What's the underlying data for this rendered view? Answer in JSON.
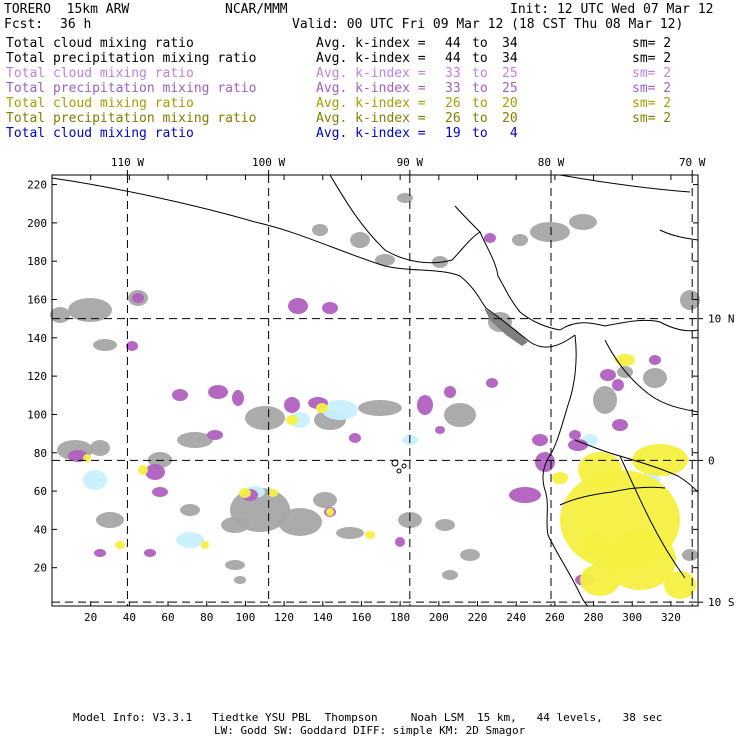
{
  "header": {
    "model": "TORERO  15km ARW",
    "org": "NCAR/MMM",
    "init": "Init: 12 UTC Wed 07 Mar 12",
    "fcst_label": "Fcst:",
    "fcst_value": "36 h",
    "valid": "Valid: 00 UTC Fri 09 Mar 12 (18 CST Thu 08 Mar 12)"
  },
  "legend": [
    {
      "field": "Total cloud mixing ratio",
      "kindex": "Avg. k-index = ",
      "from": "44",
      "to": "34",
      "sm": "sm= 2",
      "color": "#000000"
    },
    {
      "field": "Total precipitation mixing ratio",
      "kindex": "Avg. k-index = ",
      "from": "44",
      "to": "34",
      "sm": "sm= 2",
      "color": "#000000"
    },
    {
      "field": "Total cloud mixing ratio",
      "kindex": "Avg. k-index = ",
      "from": "33",
      "to": "25",
      "sm": "sm= 2",
      "color": "#c080e0"
    },
    {
      "field": "Total precipitation mixing ratio",
      "kindex": "Avg. k-index = ",
      "from": "33",
      "to": "25",
      "sm": "sm= 2",
      "color": "#a060c0"
    },
    {
      "field": "Total cloud mixing ratio",
      "kindex": "Avg. k-index = ",
      "from": "26",
      "to": "20",
      "sm": "sm= 2",
      "color": "#a0a000"
    },
    {
      "field": "Total precipitation mixing ratio",
      "kindex": "Avg. k-index = ",
      "from": "26",
      "to": "20",
      "sm": "sm= 2",
      "color": "#808000"
    },
    {
      "field": "Total cloud mixing ratio",
      "kindex": "Avg. k-index = ",
      "from": "19",
      "to": "4",
      "sm": "",
      "color": "#0000cc"
    }
  ],
  "map": {
    "x_ticks": [
      20,
      40,
      60,
      80,
      100,
      120,
      140,
      160,
      180,
      200,
      220,
      240,
      260,
      280,
      300,
      320
    ],
    "y_ticks": [
      20,
      40,
      60,
      80,
      100,
      120,
      140,
      160,
      180,
      200,
      220
    ],
    "x_range": [
      0,
      334
    ],
    "y_range": [
      0,
      225
    ],
    "lon_labels": [
      {
        "label": "110 W",
        "grid_x": 39
      },
      {
        "label": "100 W",
        "grid_x": 112
      },
      {
        "label": "90 W",
        "grid_x": 185
      },
      {
        "label": "80 W",
        "grid_x": 258
      },
      {
        "label": "70 W",
        "grid_x": 331
      }
    ],
    "lat_labels": [
      {
        "label": "10 N",
        "grid_y": 150
      },
      {
        "label": "0",
        "grid_y": 76
      },
      {
        "label": "10 S",
        "grid_y": 2
      }
    ],
    "colors": {
      "gray": "#a6a6a6",
      "purple": "#b060c0",
      "yellow": "#f4f040",
      "lightblue": "#c8f0ff",
      "coast": "#000000",
      "grid": "#000000"
    }
  },
  "footer": {
    "line1": "Model Info: V3.3.1   Tiedtke YSU PBL  Thompson     Noah LSM  15 km,   44 levels,   38 sec",
    "line2": "LW: Godd SW: Goddard DIFF: simple KM: 2D Smagor"
  }
}
